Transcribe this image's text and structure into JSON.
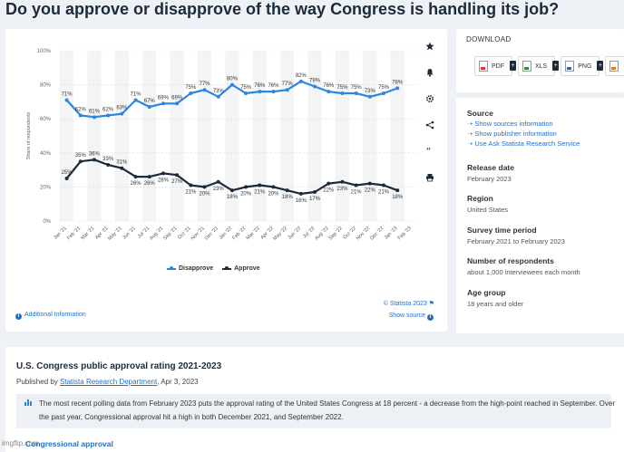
{
  "page": {
    "headline": "Do you approve or disapprove of the way Congress is handling its job?"
  },
  "chart_data": {
    "type": "line",
    "categories": [
      "Jan '21",
      "Feb '21",
      "Mar '21",
      "Apr '21",
      "May '21",
      "Jun '21",
      "Jul '21",
      "Aug '21",
      "Sep '21",
      "Oct '21",
      "Nov '21",
      "Dec '21",
      "Jan '22",
      "Feb '22",
      "Mar '22",
      "Apr '22",
      "May '22",
      "Jun '22",
      "Jul '22",
      "Aug '22",
      "Sep '22",
      "Oct '22",
      "Nov '22",
      "Dec '22",
      "Jan '23",
      "Feb '23"
    ],
    "series": [
      {
        "name": "Disapprove",
        "color": "#2e86de",
        "values": [
          71,
          62,
          61,
          62,
          63,
          71,
          67,
          69,
          69,
          75,
          77,
          73,
          80,
          75,
          76,
          76,
          77,
          82,
          79,
          76,
          75,
          75,
          73,
          75,
          78,
          null
        ]
      },
      {
        "name": "Approve",
        "color": "#1c2a3a",
        "values": [
          25,
          35,
          36,
          33,
          31,
          26,
          26,
          28,
          27,
          21,
          20,
          23,
          18,
          20,
          21,
          20,
          18,
          16,
          17,
          22,
          23,
          21,
          22,
          21,
          18,
          null
        ]
      }
    ],
    "point_labels": {
      "Disapprove": [
        "71%",
        "62%",
        "61%",
        "62%",
        "63%",
        "71%",
        "67%",
        "69%",
        "69%",
        "75%",
        "77%",
        "73%",
        "80%",
        "75%",
        "76%",
        "76%",
        "77%",
        "82%",
        "79%",
        "76%",
        "75%",
        "75%",
        "73%",
        "75%",
        "78%",
        ""
      ],
      "Approve": [
        "25%",
        "35%",
        "36%",
        "33%",
        "31%",
        "26%",
        "26%",
        "28%",
        "27%",
        "21%",
        "20%",
        "23%",
        "18%",
        "20%",
        "21%",
        "20%",
        "18%",
        "16%",
        "17%",
        "22%",
        "23%",
        "21%",
        "22%",
        "21%",
        "18%",
        ""
      ]
    },
    "y_ticks": [
      "0%",
      "20%",
      "40%",
      "60%",
      "80%",
      "100%"
    ],
    "ylim": [
      0,
      100
    ],
    "ylabel": "Share of respondents",
    "xlabel": "",
    "grid": "horizontal",
    "legend_position": "bottom-center"
  },
  "chart_ui": {
    "legend": [
      {
        "label": "Disapprove",
        "color": "#2e86de"
      },
      {
        "label": "Approve",
        "color": "#1c2a3a"
      }
    ],
    "credit": "© Statista 2023",
    "show_source": "Show source",
    "additional_info": "Additional Information",
    "toolbar": [
      "star-icon",
      "bell-icon",
      "gear-icon",
      "share-icon",
      "quote-icon",
      "print-icon"
    ]
  },
  "download": {
    "title": "DOWNLOAD",
    "buttons": [
      {
        "label": "PDF"
      },
      {
        "label": "XLS"
      },
      {
        "label": "PNG"
      },
      {
        "label": ""
      }
    ]
  },
  "meta": {
    "source_label": "Source",
    "source_links": [
      "Show sources information",
      "Show publisher information",
      "Use Ask Statista Research Service"
    ],
    "release_label": "Release date",
    "release_value": "February 2023",
    "region_label": "Region",
    "region_value": "United States",
    "period_label": "Survey time period",
    "period_value": "February 2021 to February 2023",
    "respondents_label": "Number of respondents",
    "respondents_value": "about 1,000 interviewees each month",
    "age_label": "Age group",
    "age_value": "18 years and older"
  },
  "description": {
    "title": "U.S. Congress public approval rating 2021-2023",
    "published_prefix": "Published by",
    "publisher": "Statista Research Department",
    "published_date": ", Apr 3, 2023",
    "text": "The most recent polling data from February 2023 puts the approval rating of the United States Congress at 18 percent - a decrease from the high-point reached in September. Over the past year, Congressional approval hit a high in both December 2021, and September 2022.",
    "footer_link": "Congressional approval"
  },
  "watermark": "imgflip.com"
}
